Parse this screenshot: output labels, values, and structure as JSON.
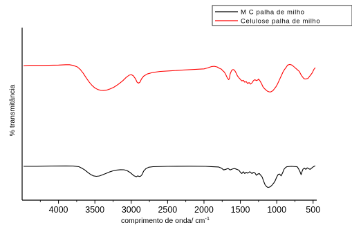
{
  "chart_data": {
    "type": "line",
    "title": "",
    "xlabel": "comprimento de onda/ cm",
    "xlabel_superscript": "-1",
    "ylabel": "% transmitância",
    "xlim": [
      4500,
      450
    ],
    "x_reversed": true,
    "x_ticks": [
      4000,
      3500,
      3000,
      2500,
      2000,
      1500,
      1000,
      500
    ],
    "y_ticks_shown": false,
    "ylim": [
      0,
      100
    ],
    "grid": false,
    "legend_position": "top-right",
    "legend_box": true,
    "series": [
      {
        "name": "M C palha de milho",
        "color": "#000000",
        "points": [
          [
            4480,
            36
          ],
          [
            4300,
            36
          ],
          [
            4100,
            36.5
          ],
          [
            3900,
            36.8
          ],
          [
            3800,
            36.5
          ],
          [
            3720,
            35.5
          ],
          [
            3680,
            33
          ],
          [
            3640,
            30
          ],
          [
            3600,
            26
          ],
          [
            3560,
            22.5
          ],
          [
            3520,
            20
          ],
          [
            3480,
            19.2
          ],
          [
            3440,
            19.8
          ],
          [
            3400,
            21.5
          ],
          [
            3350,
            24
          ],
          [
            3300,
            26.5
          ],
          [
            3250,
            28.5
          ],
          [
            3200,
            29.8
          ],
          [
            3150,
            30.3
          ],
          [
            3100,
            30.2
          ],
          [
            3060,
            29
          ],
          [
            3020,
            26
          ],
          [
            2990,
            23
          ],
          [
            2960,
            20
          ],
          [
            2930,
            18.5
          ],
          [
            2910,
            20
          ],
          [
            2890,
            19
          ],
          [
            2870,
            19.5
          ],
          [
            2850,
            22.5
          ],
          [
            2830,
            28
          ],
          [
            2800,
            32
          ],
          [
            2760,
            34.5
          ],
          [
            2700,
            35.5
          ],
          [
            2500,
            36
          ],
          [
            2200,
            36.3
          ],
          [
            1980,
            36
          ],
          [
            1900,
            35.6
          ],
          [
            1800,
            35
          ],
          [
            1760,
            33
          ],
          [
            1730,
            30
          ],
          [
            1700,
            31
          ],
          [
            1670,
            32.5
          ],
          [
            1640,
            30
          ],
          [
            1610,
            31.5
          ],
          [
            1580,
            32.5
          ],
          [
            1550,
            31
          ],
          [
            1520,
            29.5
          ],
          [
            1500,
            26
          ],
          [
            1480,
            24
          ],
          [
            1460,
            27
          ],
          [
            1440,
            24
          ],
          [
            1420,
            26
          ],
          [
            1400,
            24.5
          ],
          [
            1370,
            27
          ],
          [
            1340,
            24
          ],
          [
            1320,
            26
          ],
          [
            1300,
            25
          ],
          [
            1280,
            21
          ],
          [
            1260,
            23
          ],
          [
            1240,
            24
          ],
          [
            1220,
            21
          ],
          [
            1200,
            18
          ],
          [
            1180,
            11
          ],
          [
            1160,
            5
          ],
          [
            1140,
            2
          ],
          [
            1120,
            0.5
          ],
          [
            1100,
            1
          ],
          [
            1080,
            2.5
          ],
          [
            1060,
            5
          ],
          [
            1040,
            8
          ],
          [
            1020,
            12
          ],
          [
            1000,
            18
          ],
          [
            980,
            22.5
          ],
          [
            960,
            23
          ],
          [
            940,
            20
          ],
          [
            920,
            25
          ],
          [
            900,
            31
          ],
          [
            880,
            34
          ],
          [
            860,
            35.5
          ],
          [
            800,
            36
          ],
          [
            720,
            35.5
          ],
          [
            700,
            32
          ],
          [
            680,
            27
          ],
          [
            665,
            22
          ],
          [
            650,
            28
          ],
          [
            640,
            31
          ],
          [
            620,
            33
          ],
          [
            600,
            31
          ],
          [
            580,
            33.5
          ],
          [
            560,
            32
          ],
          [
            540,
            31
          ],
          [
            520,
            33
          ],
          [
            500,
            35
          ],
          [
            470,
            37
          ]
        ]
      },
      {
        "name": "Celulose palha de milho",
        "color": "#ff0000",
        "points": [
          [
            4480,
            90
          ],
          [
            4400,
            90.5
          ],
          [
            4200,
            90.5
          ],
          [
            4000,
            91
          ],
          [
            3900,
            91.5
          ],
          [
            3850,
            91.5
          ],
          [
            3800,
            90.5
          ],
          [
            3740,
            88
          ],
          [
            3700,
            84
          ],
          [
            3660,
            78
          ],
          [
            3620,
            71
          ],
          [
            3580,
            64.5
          ],
          [
            3540,
            59
          ],
          [
            3500,
            55
          ],
          [
            3460,
            52.5
          ],
          [
            3420,
            51.2
          ],
          [
            3380,
            51
          ],
          [
            3340,
            51.5
          ],
          [
            3300,
            53
          ],
          [
            3240,
            56
          ],
          [
            3180,
            60.5
          ],
          [
            3120,
            66
          ],
          [
            3070,
            71.5
          ],
          [
            3030,
            75
          ],
          [
            3000,
            76
          ],
          [
            2970,
            74
          ],
          [
            2940,
            69
          ],
          [
            2920,
            64
          ],
          [
            2900,
            62.5
          ],
          [
            2880,
            64
          ],
          [
            2860,
            69
          ],
          [
            2830,
            73.5
          ],
          [
            2780,
            77
          ],
          [
            2700,
            79.5
          ],
          [
            2600,
            81
          ],
          [
            2450,
            82
          ],
          [
            2300,
            83
          ],
          [
            2150,
            84
          ],
          [
            2000,
            85
          ],
          [
            1950,
            86.5
          ],
          [
            1900,
            88.5
          ],
          [
            1860,
            89
          ],
          [
            1820,
            88
          ],
          [
            1790,
            86
          ],
          [
            1760,
            84.5
          ],
          [
            1740,
            82
          ],
          [
            1720,
            80
          ],
          [
            1700,
            76
          ],
          [
            1680,
            71
          ],
          [
            1660,
            68
          ],
          [
            1650,
            70
          ],
          [
            1640,
            77
          ],
          [
            1620,
            82.5
          ],
          [
            1600,
            84
          ],
          [
            1580,
            83
          ],
          [
            1560,
            79
          ],
          [
            1540,
            74
          ],
          [
            1520,
            71
          ],
          [
            1500,
            68.5
          ],
          [
            1480,
            66
          ],
          [
            1460,
            67
          ],
          [
            1440,
            64
          ],
          [
            1420,
            65
          ],
          [
            1400,
            62
          ],
          [
            1380,
            63.5
          ],
          [
            1360,
            61
          ],
          [
            1340,
            63
          ],
          [
            1320,
            66.5
          ],
          [
            1300,
            68
          ],
          [
            1280,
            66.5
          ],
          [
            1260,
            67.5
          ],
          [
            1250,
            69
          ],
          [
            1230,
            66
          ],
          [
            1210,
            62
          ],
          [
            1190,
            57
          ],
          [
            1170,
            54
          ],
          [
            1150,
            52
          ],
          [
            1130,
            50
          ],
          [
            1110,
            49
          ],
          [
            1090,
            48.5
          ],
          [
            1070,
            49.5
          ],
          [
            1050,
            51
          ],
          [
            1030,
            54
          ],
          [
            1010,
            57
          ],
          [
            990,
            61
          ],
          [
            970,
            66
          ],
          [
            950,
            71
          ],
          [
            930,
            76
          ],
          [
            910,
            81
          ],
          [
            890,
            84.5
          ],
          [
            870,
            87.5
          ],
          [
            850,
            91
          ],
          [
            820,
            92
          ],
          [
            790,
            91
          ],
          [
            760,
            88
          ],
          [
            720,
            84
          ],
          [
            690,
            81
          ],
          [
            670,
            76.5
          ],
          [
            650,
            73
          ],
          [
            630,
            70
          ],
          [
            610,
            69
          ],
          [
            590,
            69.5
          ],
          [
            570,
            70
          ],
          [
            550,
            73
          ],
          [
            530,
            76
          ],
          [
            510,
            79
          ],
          [
            490,
            84
          ],
          [
            470,
            87
          ]
        ]
      }
    ]
  }
}
